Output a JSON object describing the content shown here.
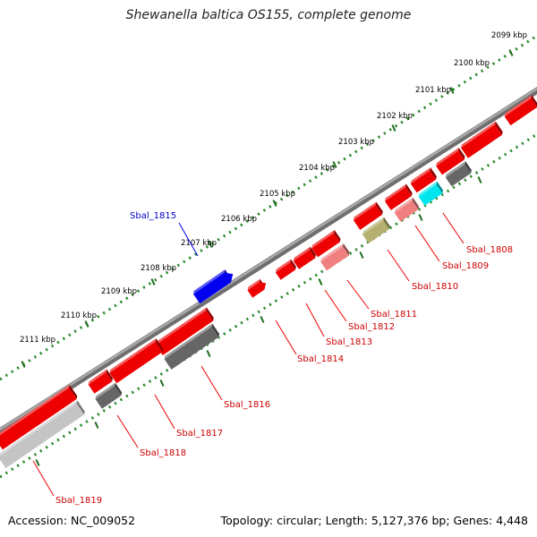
{
  "title": "Shewanella baltica OS155, complete genome",
  "footer": {
    "accession": "Accession: NC_009052",
    "summary": "Topology: circular; Length: 5,127,376 bp; Genes: 4,448"
  },
  "colors": {
    "backbone": "#8a8a8a",
    "tick_ring": "#2e8b2e",
    "selected_gene": "#0000ee",
    "gene_red": "#ee0000",
    "gene_pink": "#f08080",
    "gene_cyan": "#00e5ee",
    "gene_olive": "#b5b070",
    "gene_dark_gray": "#666666",
    "gene_light_gray": "#c4c4c4",
    "label_red": "#cc0000",
    "label_blue": "#0000cc"
  },
  "kbp_ticks": [
    "2099 kbp",
    "2100 kbp",
    "2101 kbp",
    "2102 kbp",
    "2103 kbp",
    "2104 kbp",
    "2105 kbp",
    "2106 kbp",
    "2107 kbp",
    "2108 kbp",
    "2109 kbp",
    "2110 kbp",
    "2111 kbp"
  ],
  "gene_labels": [
    {
      "text": "Sbal_1808",
      "color": "red"
    },
    {
      "text": "Sbal_1809",
      "color": "red"
    },
    {
      "text": "Sbal_1810",
      "color": "red"
    },
    {
      "text": "Sbal_1811",
      "color": "red"
    },
    {
      "text": "Sbal_1812",
      "color": "red"
    },
    {
      "text": "Sbal_1813",
      "color": "red"
    },
    {
      "text": "Sbal_1814",
      "color": "red"
    },
    {
      "text": "Sbal_1815",
      "color": "blue"
    },
    {
      "text": "Sbal_1816",
      "color": "red"
    },
    {
      "text": "Sbal_1817",
      "color": "red"
    },
    {
      "text": "Sbal_1818",
      "color": "red"
    },
    {
      "text": "Sbal_1819",
      "color": "red"
    }
  ]
}
